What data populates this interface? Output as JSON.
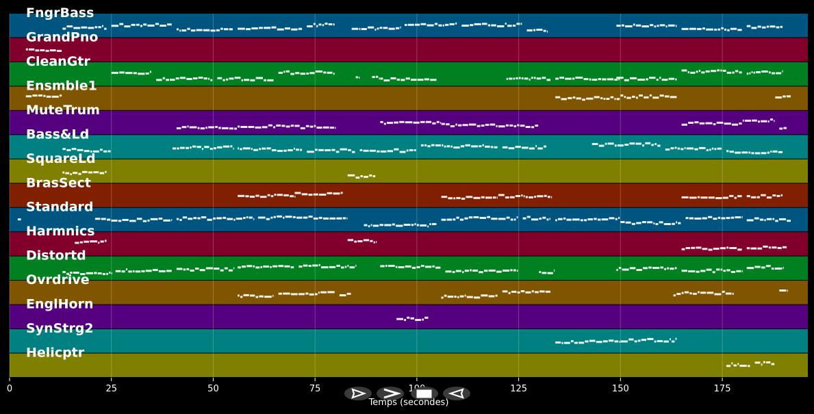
{
  "chart_data": {
    "type": "piano-roll",
    "xlabel": "Temps (secondes)",
    "xlim": [
      0,
      196
    ],
    "x_ticks": [
      {
        "value": 0,
        "label": "0"
      },
      {
        "value": 25,
        "label": "25"
      },
      {
        "value": 50,
        "label": "50"
      },
      {
        "value": 75,
        "label": "75"
      },
      {
        "value": 100,
        "label": "100"
      },
      {
        "value": 125,
        "label": "125"
      },
      {
        "value": 150,
        "label": "150"
      },
      {
        "value": 175,
        "label": "175"
      }
    ],
    "grid": true,
    "tracks": [
      {
        "name": "FngrBass",
        "color": "#005580",
        "segments": [
          [
            13,
            24
          ],
          [
            25,
            40
          ],
          [
            41,
            55
          ],
          [
            56,
            72
          ],
          [
            73,
            80
          ],
          [
            84,
            96
          ],
          [
            97,
            110
          ],
          [
            111,
            126
          ],
          [
            127,
            132
          ],
          [
            149,
            164
          ],
          [
            165,
            180
          ],
          [
            181,
            190
          ]
        ]
      },
      {
        "name": "GrandPno",
        "color": "#80002b",
        "segments": [
          [
            4,
            13
          ]
        ]
      },
      {
        "name": "CleanGtr",
        "color": "#008020",
        "segments": [
          [
            25,
            35
          ],
          [
            36,
            50
          ],
          [
            51,
            65
          ],
          [
            66,
            80
          ],
          [
            85,
            86
          ],
          [
            89,
            91
          ],
          [
            91,
            105
          ],
          [
            122,
            133
          ],
          [
            134,
            150
          ],
          [
            149,
            164
          ],
          [
            165,
            180
          ],
          [
            181,
            190
          ]
        ]
      },
      {
        "name": "Ensmble1",
        "color": "#805500",
        "segments": [
          [
            4,
            13
          ],
          [
            134,
            150
          ],
          [
            150,
            164
          ],
          [
            188,
            192
          ]
        ]
      },
      {
        "name": "MuteTrum",
        "color": "#55007f",
        "segments": [
          [
            41,
            56
          ],
          [
            56,
            70
          ],
          [
            70,
            80
          ],
          [
            91,
            106
          ],
          [
            106,
            120
          ],
          [
            120,
            130
          ],
          [
            165,
            180
          ],
          [
            180,
            188
          ],
          [
            189,
            191
          ]
        ]
      },
      {
        "name": "Bass&Ld",
        "color": "#008080",
        "segments": [
          [
            13,
            25
          ],
          [
            40,
            55
          ],
          [
            56,
            72
          ],
          [
            73,
            85
          ],
          [
            86,
            100
          ],
          [
            101,
            120
          ],
          [
            121,
            132
          ],
          [
            143,
            160
          ],
          [
            161,
            175
          ],
          [
            176,
            190
          ]
        ]
      },
      {
        "name": "SquareLd",
        "color": "#808000",
        "segments": [
          [
            13,
            24
          ],
          [
            83,
            90
          ]
        ]
      },
      {
        "name": "BrasSect",
        "color": "#802000",
        "segments": [
          [
            56,
            70
          ],
          [
            70,
            82
          ],
          [
            106,
            120
          ],
          [
            120,
            133
          ],
          [
            165,
            180
          ],
          [
            181,
            190
          ]
        ]
      },
      {
        "name": "Standard",
        "color": "#005580",
        "segments": [
          [
            2,
            3
          ],
          [
            21,
            40
          ],
          [
            41,
            60
          ],
          [
            61,
            83
          ],
          [
            87,
            105
          ],
          [
            106,
            125
          ],
          [
            126,
            133
          ],
          [
            134,
            150
          ],
          [
            150,
            165
          ],
          [
            166,
            180
          ],
          [
            181,
            192
          ]
        ]
      },
      {
        "name": "Harmnics",
        "color": "#80002b",
        "segments": [
          [
            16,
            24
          ],
          [
            83,
            90
          ],
          [
            165,
            180
          ],
          [
            181,
            191
          ]
        ]
      },
      {
        "name": "Distortd",
        "color": "#008020",
        "segments": [
          [
            13,
            25
          ],
          [
            26,
            40
          ],
          [
            41,
            55
          ],
          [
            56,
            70
          ],
          [
            71,
            85
          ],
          [
            91,
            106
          ],
          [
            107,
            125
          ],
          [
            130,
            134
          ],
          [
            149,
            164
          ],
          [
            165,
            180
          ],
          [
            181,
            190
          ]
        ]
      },
      {
        "name": "Ovrdrive",
        "color": "#805500",
        "segments": [
          [
            56,
            65
          ],
          [
            66,
            80
          ],
          [
            81,
            84
          ],
          [
            106,
            120
          ],
          [
            121,
            133
          ],
          [
            163,
            165
          ],
          [
            165,
            178
          ],
          [
            189,
            191
          ]
        ]
      },
      {
        "name": "EnglHorn",
        "color": "#55007f",
        "segments": [
          [
            95,
            103
          ]
        ]
      },
      {
        "name": "SynStrg2",
        "color": "#008080",
        "segments": [
          [
            134,
            150
          ],
          [
            150,
            164
          ]
        ]
      },
      {
        "name": "Helicptr",
        "color": "#808000",
        "segments": [
          [
            176,
            182
          ],
          [
            183,
            188
          ]
        ]
      }
    ]
  },
  "controls": {
    "buttons": [
      {
        "name": "play-forward-button",
        "label": "play forward"
      },
      {
        "name": "fast-forward-button",
        "label": "fast forward"
      },
      {
        "name": "stop-button",
        "label": "stop"
      },
      {
        "name": "rewind-button",
        "label": "rewind"
      }
    ]
  }
}
